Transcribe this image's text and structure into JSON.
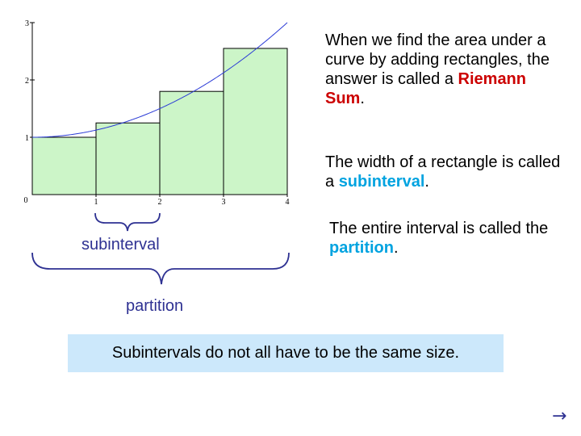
{
  "paragraphs": {
    "p1": {
      "before": "When we find the area under a curve by adding rectangles, the answer is called a ",
      "term": "Riemann Sum",
      "after": "."
    },
    "p2": {
      "before": "The width of a rectangle is called a ",
      "term": "subinterval",
      "after": "."
    },
    "p3": {
      "before": "The entire interval is called the ",
      "term": "partition",
      "after": "."
    }
  },
  "labels": {
    "subinterval": "subinterval",
    "partition": "partition"
  },
  "note": "Subintervals do not all have to be the same size.",
  "nav": {
    "next_icon": "right-arrow-icon",
    "next_glyph": "→"
  },
  "colors": {
    "bar_fill": "#ccf5c8",
    "curve": "#2b3bd6",
    "term_red": "#cc0000",
    "term_cyan": "#00a3e0",
    "label_blue": "#2e3192",
    "note_bg": "#cce8fb"
  },
  "chart_data": {
    "type": "bar",
    "x_ticks": [
      "0",
      "1",
      "2",
      "3",
      "4"
    ],
    "y_ticks": [
      "1",
      "2",
      "3"
    ],
    "xlim": [
      0,
      4
    ],
    "ylim": [
      0,
      3
    ],
    "rectangles": [
      {
        "x0": 0,
        "x1": 1,
        "height": 1.0
      },
      {
        "x0": 1,
        "x1": 2,
        "height": 1.25
      },
      {
        "x0": 2,
        "x1": 3,
        "height": 1.8
      },
      {
        "x0": 3,
        "x1": 4,
        "height": 2.55
      }
    ],
    "curve": {
      "formula": "y = 1 + x^2/8",
      "x_range": [
        0,
        4
      ]
    }
  }
}
